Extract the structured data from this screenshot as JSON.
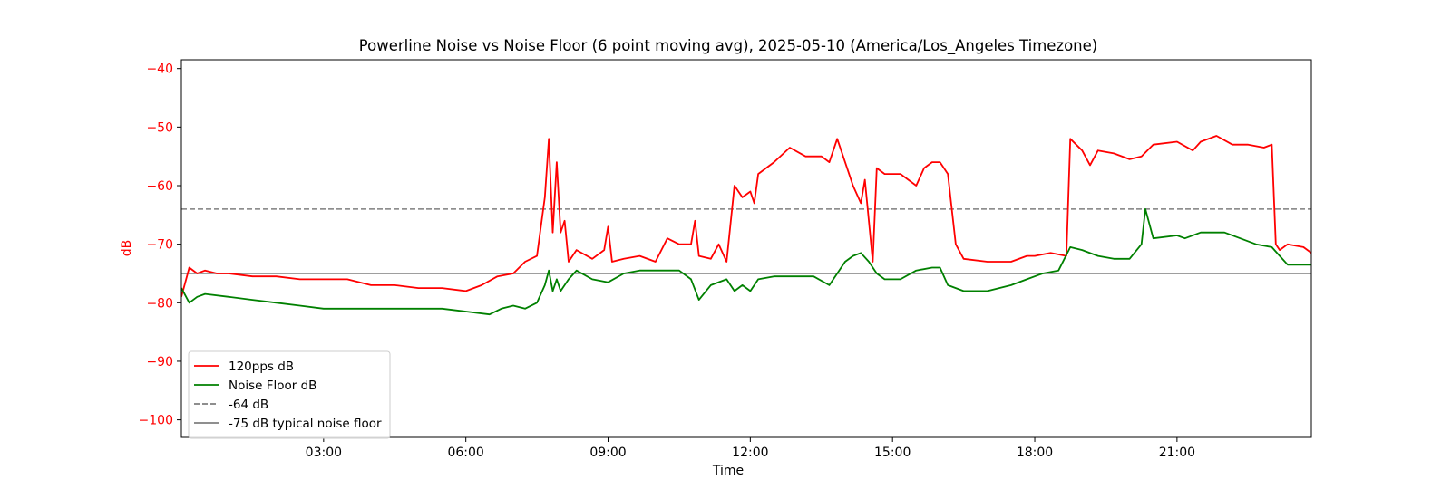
{
  "chart_data": {
    "type": "line",
    "title": "Powerline Noise vs Noise Floor (6 point moving avg), 2025-05-10 (America/Los_Angeles Timezone)",
    "xlabel": "Time",
    "ylabel": "dB",
    "xlim": [
      "00:00",
      "23:50"
    ],
    "ylim": [
      -103,
      -38.5
    ],
    "x_ticks": [
      "03:00",
      "06:00",
      "09:00",
      "12:00",
      "15:00",
      "18:00",
      "21:00"
    ],
    "y_ticks": [
      -40,
      -50,
      -60,
      -70,
      -80,
      -90,
      -100
    ],
    "ytick_labels": [
      "−40",
      "−50",
      "−60",
      "−70",
      "−80",
      "−90",
      "−100"
    ],
    "grid": false,
    "legend_position": "lower-left",
    "colors": {
      "signal": "#ff0000",
      "floor": "#008000",
      "ref_dashed": "#7f7f7f",
      "ref_solid": "#7f7f7f",
      "ylabel": "#ff0000",
      "yticks": "#ff0000"
    },
    "series": [
      {
        "name": "120pps dB",
        "color": "#ff0000",
        "points": [
          [
            "00:00",
            -79
          ],
          [
            "00:10",
            -74
          ],
          [
            "00:20",
            -75
          ],
          [
            "00:30",
            -74.5
          ],
          [
            "00:45",
            -75
          ],
          [
            "01:00",
            -75
          ],
          [
            "01:30",
            -75.5
          ],
          [
            "02:00",
            -75.5
          ],
          [
            "02:30",
            -76
          ],
          [
            "03:00",
            -76
          ],
          [
            "03:30",
            -76
          ],
          [
            "04:00",
            -77
          ],
          [
            "04:30",
            -77
          ],
          [
            "05:00",
            -77.5
          ],
          [
            "05:30",
            -77.5
          ],
          [
            "06:00",
            -78
          ],
          [
            "06:20",
            -77
          ],
          [
            "06:40",
            -75.5
          ],
          [
            "07:00",
            -75
          ],
          [
            "07:15",
            -73
          ],
          [
            "07:30",
            -72
          ],
          [
            "07:40",
            -62
          ],
          [
            "07:45",
            -52
          ],
          [
            "07:50",
            -68
          ],
          [
            "07:55",
            -56
          ],
          [
            "08:00",
            -68
          ],
          [
            "08:05",
            -66
          ],
          [
            "08:10",
            -73
          ],
          [
            "08:20",
            -71
          ],
          [
            "08:40",
            -72.5
          ],
          [
            "08:55",
            -71
          ],
          [
            "09:00",
            -67
          ],
          [
            "09:05",
            -73
          ],
          [
            "09:20",
            -72.5
          ],
          [
            "09:40",
            -72
          ],
          [
            "10:00",
            -73
          ],
          [
            "10:15",
            -69
          ],
          [
            "10:30",
            -70
          ],
          [
            "10:45",
            -70
          ],
          [
            "10:50",
            -66
          ],
          [
            "10:55",
            -72
          ],
          [
            "11:10",
            -72.5
          ],
          [
            "11:20",
            -70
          ],
          [
            "11:30",
            -73
          ],
          [
            "11:40",
            -60
          ],
          [
            "11:50",
            -62
          ],
          [
            "12:00",
            -61
          ],
          [
            "12:05",
            -63
          ],
          [
            "12:10",
            -58
          ],
          [
            "12:30",
            -56
          ],
          [
            "12:50",
            -53.5
          ],
          [
            "13:10",
            -55
          ],
          [
            "13:30",
            -55
          ],
          [
            "13:40",
            -56
          ],
          [
            "13:50",
            -52
          ],
          [
            "14:00",
            -56
          ],
          [
            "14:10",
            -60
          ],
          [
            "14:20",
            -63
          ],
          [
            "14:25",
            -59
          ],
          [
            "14:35",
            -73
          ],
          [
            "14:40",
            -57
          ],
          [
            "14:50",
            -58
          ],
          [
            "15:10",
            -58
          ],
          [
            "15:30",
            -60
          ],
          [
            "15:40",
            -57
          ],
          [
            "15:50",
            -56
          ],
          [
            "16:00",
            -56
          ],
          [
            "16:10",
            -58
          ],
          [
            "16:20",
            -70
          ],
          [
            "16:30",
            -72.5
          ],
          [
            "17:00",
            -73
          ],
          [
            "17:30",
            -73
          ],
          [
            "17:50",
            -72
          ],
          [
            "18:00",
            -72
          ],
          [
            "18:20",
            -71.5
          ],
          [
            "18:40",
            -72
          ],
          [
            "18:45",
            -52
          ],
          [
            "19:00",
            -54
          ],
          [
            "19:10",
            -56.5
          ],
          [
            "19:20",
            -54
          ],
          [
            "19:40",
            -54.5
          ],
          [
            "20:00",
            -55.5
          ],
          [
            "20:15",
            -55
          ],
          [
            "20:30",
            -53
          ],
          [
            "21:00",
            -52.5
          ],
          [
            "21:20",
            -54
          ],
          [
            "21:30",
            -52.5
          ],
          [
            "21:50",
            -51.5
          ],
          [
            "22:10",
            -53
          ],
          [
            "22:30",
            -53
          ],
          [
            "22:50",
            -53.5
          ],
          [
            "23:00",
            -53
          ],
          [
            "23:05",
            -70
          ],
          [
            "23:10",
            -71
          ],
          [
            "23:20",
            -70
          ],
          [
            "23:40",
            -70.5
          ],
          [
            "23:50",
            -71.5
          ]
        ]
      },
      {
        "name": "Noise Floor dB",
        "color": "#008000",
        "points": [
          [
            "00:00",
            -77.5
          ],
          [
            "00:10",
            -80
          ],
          [
            "00:20",
            -79
          ],
          [
            "00:30",
            -78.5
          ],
          [
            "01:00",
            -79
          ],
          [
            "01:30",
            -79.5
          ],
          [
            "02:00",
            -80
          ],
          [
            "02:30",
            -80.5
          ],
          [
            "03:00",
            -81
          ],
          [
            "03:30",
            -81
          ],
          [
            "04:00",
            -81
          ],
          [
            "04:30",
            -81
          ],
          [
            "05:00",
            -81
          ],
          [
            "05:30",
            -81
          ],
          [
            "06:00",
            -81.5
          ],
          [
            "06:30",
            -82
          ],
          [
            "06:45",
            -81
          ],
          [
            "07:00",
            -80.5
          ],
          [
            "07:15",
            -81
          ],
          [
            "07:30",
            -80
          ],
          [
            "07:40",
            -77
          ],
          [
            "07:45",
            -74.5
          ],
          [
            "07:50",
            -78
          ],
          [
            "07:55",
            -76
          ],
          [
            "08:00",
            -78
          ],
          [
            "08:10",
            -76
          ],
          [
            "08:20",
            -74.5
          ],
          [
            "08:40",
            -76
          ],
          [
            "09:00",
            -76.5
          ],
          [
            "09:20",
            -75
          ],
          [
            "09:40",
            -74.5
          ],
          [
            "10:00",
            -74.5
          ],
          [
            "10:30",
            -74.5
          ],
          [
            "10:45",
            -76
          ],
          [
            "10:55",
            -79.5
          ],
          [
            "11:10",
            -77
          ],
          [
            "11:30",
            -76
          ],
          [
            "11:40",
            -78
          ],
          [
            "11:50",
            -77
          ],
          [
            "12:00",
            -78
          ],
          [
            "12:10",
            -76
          ],
          [
            "12:30",
            -75.5
          ],
          [
            "13:00",
            -75.5
          ],
          [
            "13:20",
            -75.5
          ],
          [
            "13:40",
            -77
          ],
          [
            "13:50",
            -75
          ],
          [
            "14:00",
            -73
          ],
          [
            "14:10",
            -72
          ],
          [
            "14:20",
            -71.5
          ],
          [
            "14:30",
            -73
          ],
          [
            "14:40",
            -75
          ],
          [
            "14:50",
            -76
          ],
          [
            "15:10",
            -76
          ],
          [
            "15:30",
            -74.5
          ],
          [
            "15:50",
            -74
          ],
          [
            "16:00",
            -74
          ],
          [
            "16:10",
            -77
          ],
          [
            "16:30",
            -78
          ],
          [
            "17:00",
            -78
          ],
          [
            "17:30",
            -77
          ],
          [
            "17:50",
            -76
          ],
          [
            "18:10",
            -75
          ],
          [
            "18:30",
            -74.5
          ],
          [
            "18:45",
            -70.5
          ],
          [
            "19:00",
            -71
          ],
          [
            "19:20",
            -72
          ],
          [
            "19:40",
            -72.5
          ],
          [
            "20:00",
            -72.5
          ],
          [
            "20:15",
            -70
          ],
          [
            "20:20",
            -64
          ],
          [
            "20:30",
            -69
          ],
          [
            "21:00",
            -68.5
          ],
          [
            "21:10",
            -69
          ],
          [
            "21:30",
            -68
          ],
          [
            "22:00",
            -68
          ],
          [
            "22:20",
            -69
          ],
          [
            "22:40",
            -70
          ],
          [
            "23:00",
            -70.5
          ],
          [
            "23:10",
            -72
          ],
          [
            "23:20",
            -73.5
          ],
          [
            "23:50",
            -73.5
          ]
        ]
      }
    ],
    "reference_lines": [
      {
        "name": "-64 dB",
        "y": -64,
        "style": "dashed",
        "color": "#7f7f7f"
      },
      {
        "name": "-75 dB typical noise floor",
        "y": -75,
        "style": "solid",
        "color": "#7f7f7f"
      }
    ]
  }
}
